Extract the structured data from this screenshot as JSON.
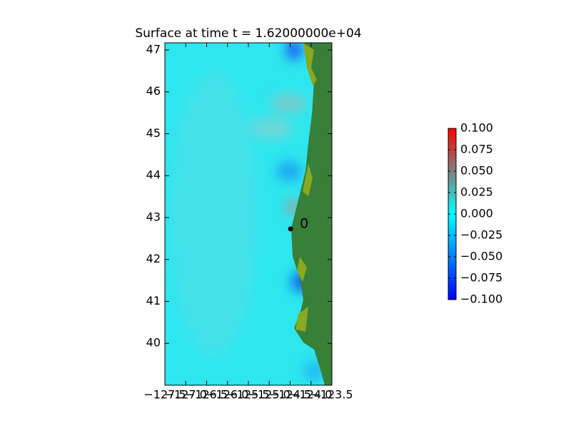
{
  "chart_data": {
    "type": "heatmap",
    "title": "Surface at time t = 1.62000000e+04",
    "xlim": [
      -127.5,
      -123.5
    ],
    "ylim": [
      39.0,
      47.17
    ],
    "xticks": [
      {
        "value": -127.5,
        "label": "−127.5"
      },
      {
        "value": -127.0,
        "label": "−127.0"
      },
      {
        "value": -126.5,
        "label": "−126.5"
      },
      {
        "value": -126.0,
        "label": "−126.0"
      },
      {
        "value": -125.5,
        "label": "−125.5"
      },
      {
        "value": -125.0,
        "label": "−125.0"
      },
      {
        "value": -124.5,
        "label": "−124.5"
      },
      {
        "value": -124.0,
        "label": "−124.0"
      },
      {
        "value": -123.5,
        "label": "−123.5"
      }
    ],
    "yticks": [
      40,
      41,
      42,
      43,
      44,
      45,
      46,
      47
    ],
    "colorbar": {
      "lim": [
        -0.1,
        0.1
      ],
      "colors": [
        "#0000ff",
        "#00ffff",
        "#ff0000"
      ],
      "ticks": [
        {
          "value": 0.1,
          "label": "0.100"
        },
        {
          "value": 0.075,
          "label": "0.075"
        },
        {
          "value": 0.05,
          "label": "0.050"
        },
        {
          "value": 0.025,
          "label": "0.025"
        },
        {
          "value": 0.0,
          "label": "0.000"
        },
        {
          "value": -0.025,
          "label": "−0.025"
        },
        {
          "value": -0.05,
          "label": "−0.050"
        },
        {
          "value": -0.075,
          "label": "−0.075"
        },
        {
          "value": -0.1,
          "label": "−0.100"
        }
      ]
    },
    "gauges": [
      {
        "label": "0",
        "x": -124.49,
        "y": 42.73
      }
    ]
  }
}
